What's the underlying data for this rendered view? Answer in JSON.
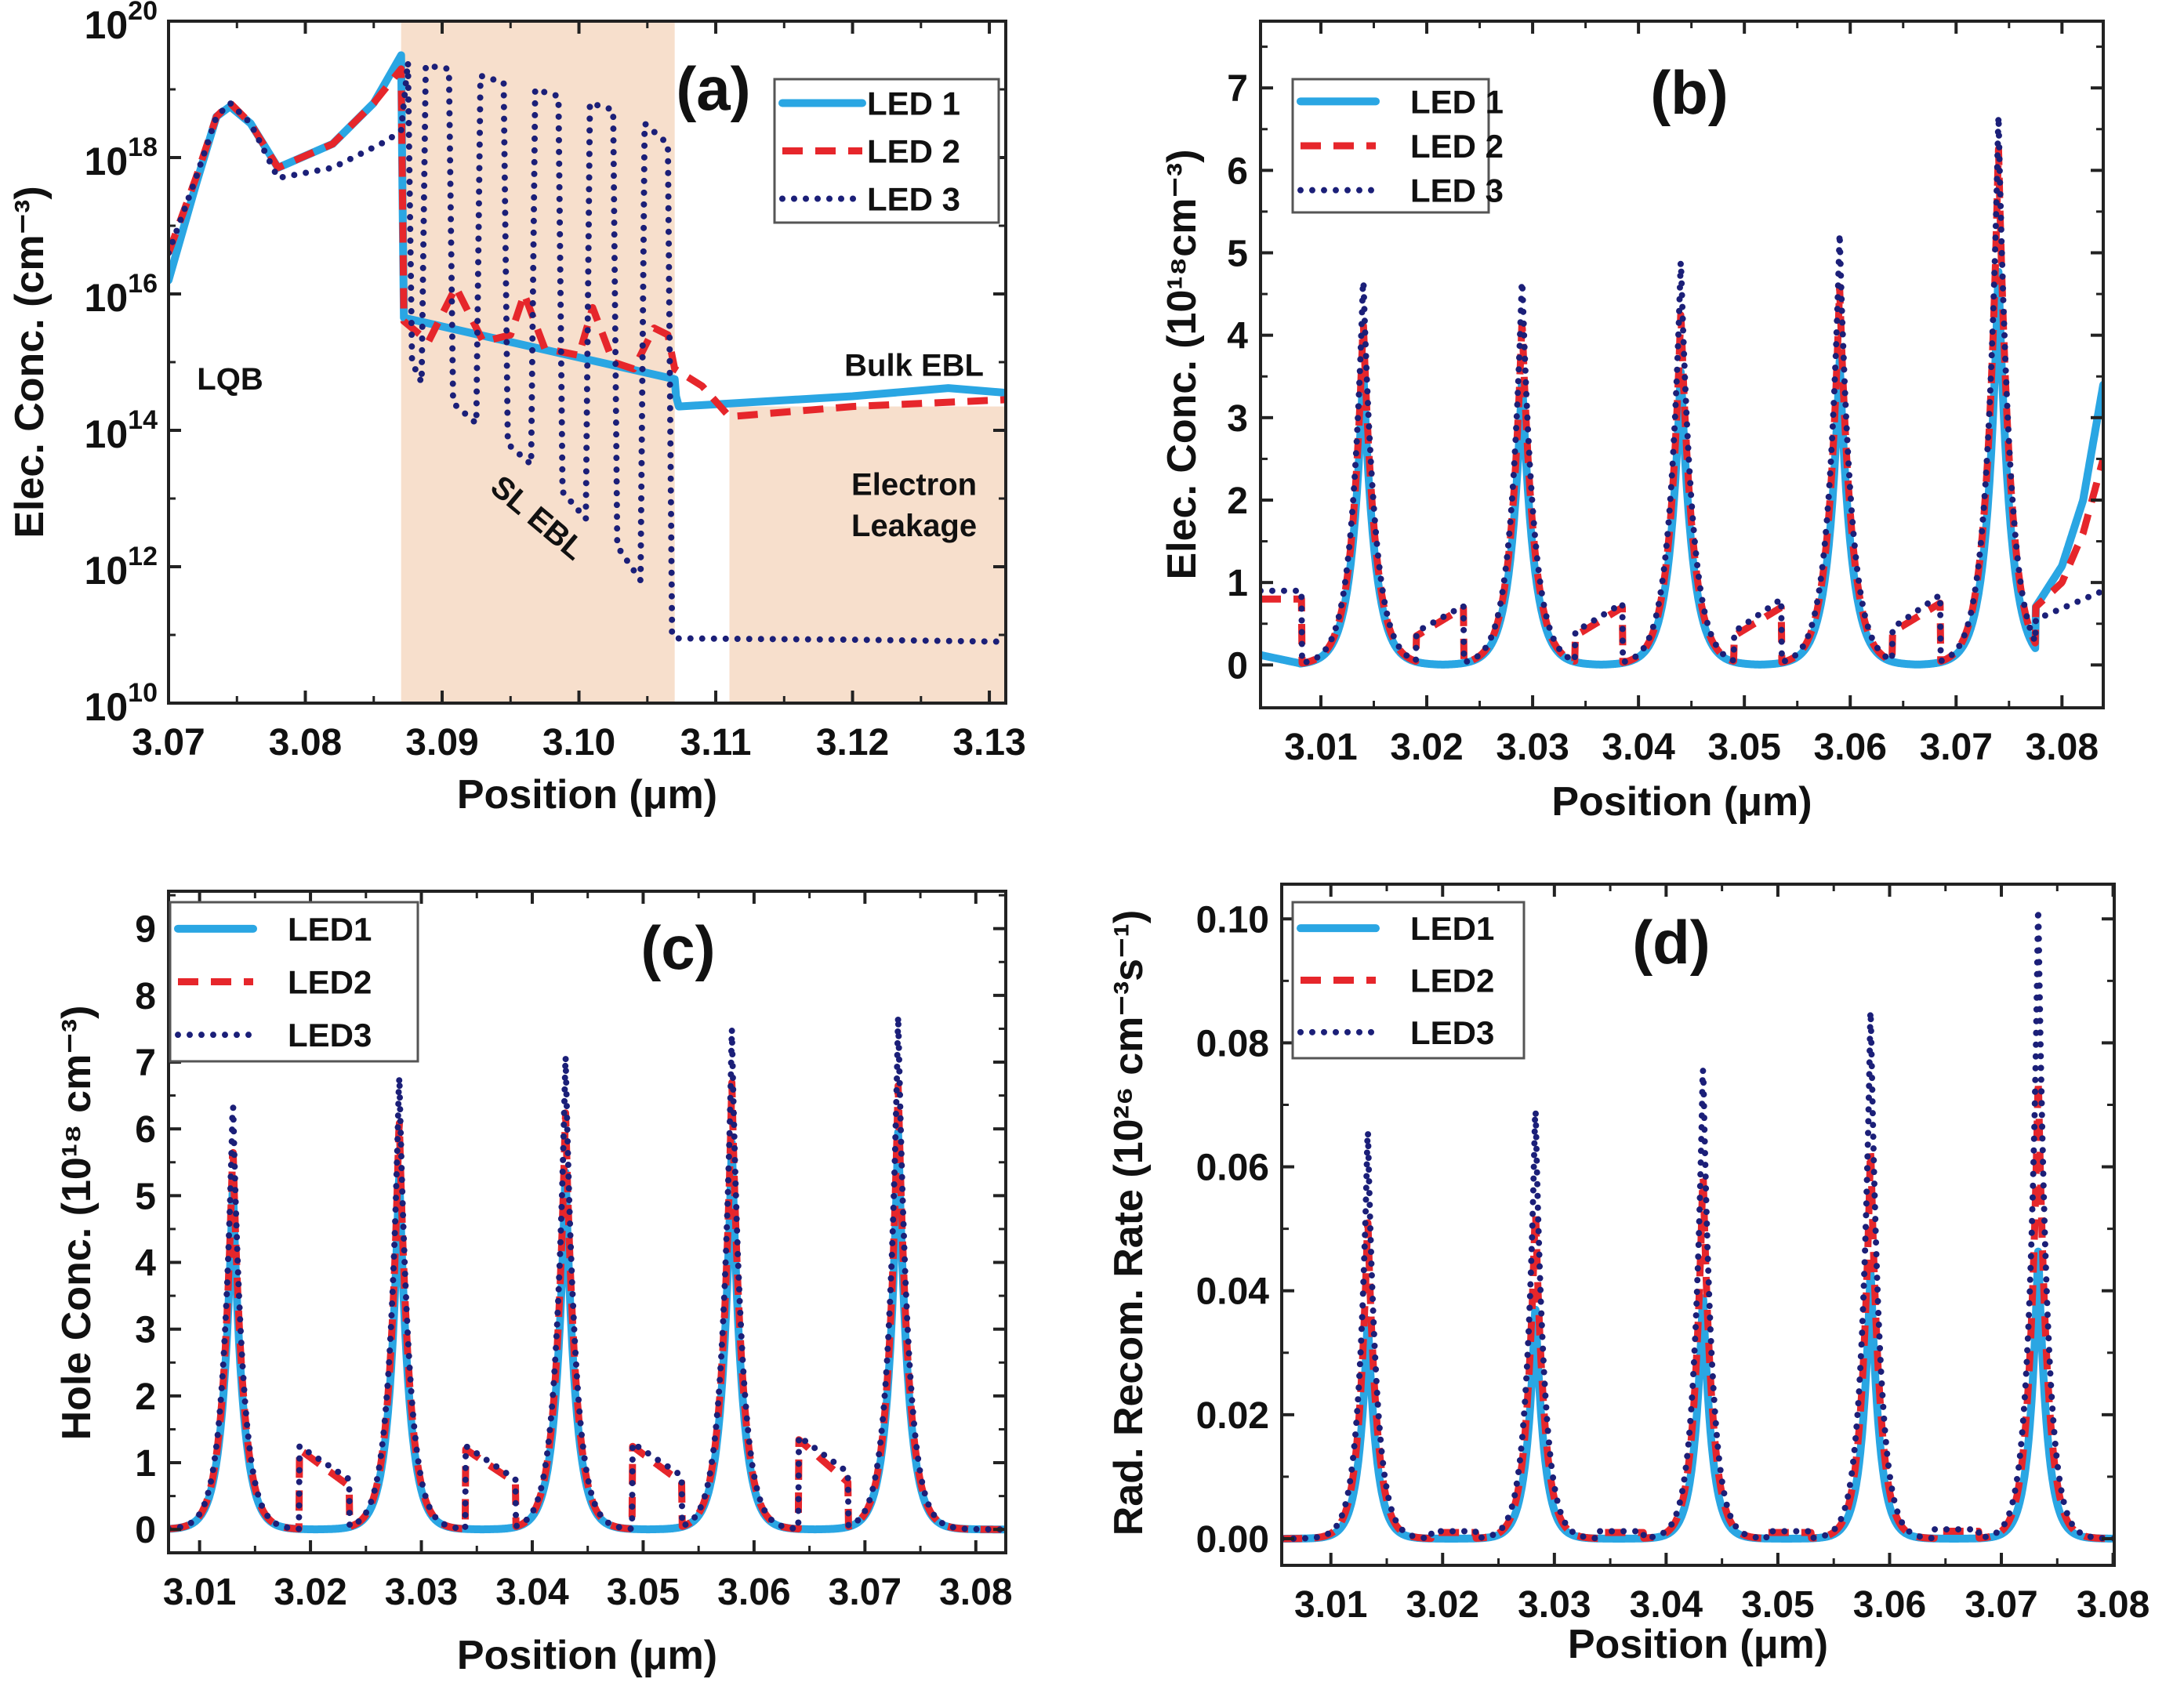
{
  "colors": {
    "LED1": "#2aa6e3",
    "LED2": "#e6262b",
    "LED3": "#1b1f78",
    "shade": "#f7dfcc"
  },
  "chart_data": [
    {
      "id": "a",
      "type": "line",
      "panel_label": "(a)",
      "xlabel": "Position (μm)",
      "ylabel": "Elec. Conc. (cm⁻³)",
      "yscale": "log10",
      "xlim": [
        3.07,
        3.1312
      ],
      "ylim_log10": [
        10,
        20
      ],
      "xticks": [
        3.07,
        3.08,
        3.09,
        3.1,
        3.11,
        3.12,
        3.13
      ],
      "xtick_labels": [
        "3.07",
        "3.08",
        "3.09",
        "3.10",
        "3.11",
        "3.12",
        "3.13"
      ],
      "yticks_exp": [
        10,
        12,
        14,
        16,
        18,
        20
      ],
      "legend_labels": [
        "LED 1",
        "LED 2",
        "LED 3"
      ],
      "shaded_regions": [
        {
          "x": [
            3.087,
            3.107
          ],
          "y_log10": [
            10,
            20
          ]
        },
        {
          "x": [
            3.111,
            3.1312
          ],
          "y_log10": [
            10,
            14.35
          ]
        }
      ],
      "annotations": [
        {
          "text": "LQB",
          "x": 3.0745,
          "y_log10": 14.6
        },
        {
          "text": "SL EBL",
          "x": 3.0965,
          "y_log10": 12.6,
          "rotate": 40
        },
        {
          "text": "Bulk EBL",
          "x": 3.1245,
          "y_log10": 14.8
        },
        {
          "text": "Electron",
          "x": 3.1245,
          "y_log10": 13.05
        },
        {
          "text": "Leakage",
          "x": 3.1245,
          "y_log10": 12.45
        }
      ],
      "series": [
        {
          "name": "LED 1",
          "x": [
            3.07,
            3.072,
            3.0735,
            3.0745,
            3.076,
            3.078,
            3.082,
            3.085,
            3.087,
            3.0871,
            3.0872,
            3.107,
            3.1071,
            3.1073,
            3.12,
            3.127,
            3.1312
          ],
          "y_log10": [
            16.2,
            17.6,
            18.6,
            18.75,
            18.5,
            17.85,
            18.2,
            18.8,
            19.5,
            17.5,
            15.65,
            14.75,
            14.5,
            14.35,
            14.5,
            14.62,
            14.55
          ]
        },
        {
          "name": "LED 2",
          "x": [
            3.07,
            3.072,
            3.0735,
            3.0745,
            3.076,
            3.078,
            3.082,
            3.085,
            3.087,
            3.0871,
            3.0872,
            3.089,
            3.0905,
            3.091,
            3.093,
            3.095,
            3.096,
            3.0975,
            3.1,
            3.101,
            3.1025,
            3.104,
            3.1055,
            3.1065,
            3.107,
            3.109,
            3.111,
            3.12,
            3.1312
          ],
          "y_log10": [
            16.6,
            17.7,
            18.6,
            18.8,
            18.5,
            17.85,
            18.2,
            18.8,
            19.3,
            17.5,
            15.6,
            15.3,
            15.9,
            16.1,
            15.3,
            15.4,
            16.0,
            15.2,
            15.1,
            15.8,
            15.0,
            14.9,
            15.5,
            15.4,
            14.9,
            14.65,
            14.2,
            14.35,
            14.45
          ]
        },
        {
          "name": "LED 3",
          "x": [
            3.07,
            3.072,
            3.0735,
            3.0745,
            3.076,
            3.078,
            3.082,
            3.086,
            3.087,
            3.0872,
            3.0875,
            3.0885,
            3.0905,
            3.0925,
            3.0945,
            3.0965,
            3.0985,
            3.1005,
            3.1025,
            3.1045,
            3.1065,
            3.107,
            3.12,
            3.1312
          ],
          "y_log10": [
            16.6,
            17.7,
            18.6,
            18.8,
            18.5,
            17.7,
            17.85,
            18.25,
            18.4,
            15.2,
            19.4,
            14.9,
            19.3,
            14.2,
            19.2,
            13.6,
            19.0,
            13.1,
            18.8,
            12.6,
            18.5,
            10.95,
            10.93,
            10.9
          ],
          "note_columns": {
            "x": [
              3.0875,
              3.0885,
              3.0905,
              3.0925,
              3.0945,
              3.0965,
              3.0985,
              3.1005,
              3.1025,
              3.1045,
              3.1065
            ],
            "top_log10": [
              19.4,
              19.35,
              19.3,
              19.2,
              19.1,
              19.0,
              18.9,
              18.8,
              18.7,
              18.5,
              18.2
            ],
            "bottom_log10": [
              15.0,
              14.7,
              14.4,
              14.1,
              13.8,
              13.5,
              13.1,
              12.7,
              12.3,
              11.8,
              11.2
            ]
          }
        }
      ]
    },
    {
      "id": "b",
      "type": "line",
      "panel_label": "(b)",
      "xlabel": "Position (μm)",
      "ylabel": "Elec. Conc. (10¹⁸cm⁻³)",
      "xlim": [
        3.0043,
        3.0839
      ],
      "ylim": [
        -0.52,
        7.81
      ],
      "xticks": [
        3.01,
        3.02,
        3.03,
        3.04,
        3.05,
        3.06,
        3.07,
        3.08
      ],
      "xtick_labels": [
        "3.01",
        "3.02",
        "3.03",
        "3.04",
        "3.05",
        "3.06",
        "3.07",
        "3.08"
      ],
      "yticks": [
        0,
        1,
        2,
        3,
        4,
        5,
        6,
        7
      ],
      "ytick_labels": [
        "0",
        "1",
        "2",
        "3",
        "4",
        "5",
        "6",
        "7"
      ],
      "legend_labels": [
        "LED 1",
        "LED 2",
        "LED 3"
      ],
      "peak_centers": [
        3.014,
        3.029,
        3.044,
        3.059,
        3.074
      ],
      "peak_width": 0.0011,
      "series": [
        {
          "name": "LED 1",
          "peaks": [
            3.6,
            3.5,
            3.6,
            3.7,
            4.8
          ],
          "segments": [
            [
              3.0043,
              3.008,
              0.12,
              0.02
            ],
            [
              3.0775,
              3.08,
              0.7,
              1.2
            ],
            [
              3.08,
              3.082,
              1.2,
              2.0
            ],
            [
              3.082,
              3.0839,
              2.0,
              3.4
            ]
          ]
        },
        {
          "name": "LED 2",
          "peaks": [
            4.2,
            4.2,
            4.3,
            4.6,
            6.3
          ],
          "segments": [
            [
              3.0043,
              3.0082,
              0.8,
              0.8
            ],
            [
              3.019,
              3.0235,
              0.35,
              0.7
            ],
            [
              3.034,
              3.0385,
              0.35,
              0.7
            ],
            [
              3.049,
              3.0535,
              0.35,
              0.7
            ],
            [
              3.064,
              3.0685,
              0.4,
              0.75
            ],
            [
              3.0775,
              3.08,
              0.7,
              1.0
            ],
            [
              3.08,
              3.082,
              1.0,
              1.6
            ],
            [
              3.082,
              3.0839,
              1.6,
              2.5
            ]
          ]
        },
        {
          "name": "LED 3",
          "peaks": [
            4.75,
            4.75,
            4.95,
            5.25,
            6.7
          ],
          "segments": [
            [
              3.0043,
              3.0082,
              0.9,
              0.9
            ],
            [
              3.019,
              3.0235,
              0.4,
              0.72
            ],
            [
              3.034,
              3.0385,
              0.4,
              0.75
            ],
            [
              3.049,
              3.0535,
              0.4,
              0.8
            ],
            [
              3.064,
              3.0685,
              0.45,
              0.85
            ],
            [
              3.0775,
              3.0839,
              0.55,
              0.9
            ]
          ]
        }
      ]
    },
    {
      "id": "c",
      "type": "line",
      "panel_label": "(c)",
      "xlabel": "Position (μm)",
      "ylabel": "Hole Conc. (10¹⁸ cm⁻³)",
      "xlim": [
        3.0072,
        3.0827
      ],
      "ylim": [
        -0.35,
        9.56
      ],
      "xticks": [
        3.01,
        3.02,
        3.03,
        3.04,
        3.05,
        3.06,
        3.07,
        3.08
      ],
      "xtick_labels": [
        "3.01",
        "3.02",
        "3.03",
        "3.04",
        "3.05",
        "3.06",
        "3.07",
        "3.08"
      ],
      "yticks": [
        0,
        1,
        2,
        3,
        4,
        5,
        6,
        7,
        8,
        9
      ],
      "ytick_labels": [
        "0",
        "1",
        "2",
        "3",
        "4",
        "5",
        "6",
        "7",
        "8",
        "9"
      ],
      "legend_labels": [
        "LED1",
        "LED2",
        "LED3"
      ],
      "peak_centers": [
        3.013,
        3.028,
        3.043,
        3.058,
        3.073
      ],
      "peak_width": 0.0009,
      "series": [
        {
          "name": "LED1",
          "peaks": [
            5.2,
            5.4,
            5.4,
            5.8,
            6.0
          ],
          "segments": []
        },
        {
          "name": "LED2",
          "peaks": [
            5.8,
            6.2,
            6.3,
            6.7,
            6.7
          ],
          "segments": [
            [
              3.019,
              3.0235,
              1.2,
              0.65
            ],
            [
              3.034,
              3.0385,
              1.2,
              0.7
            ],
            [
              3.049,
              3.0535,
              1.25,
              0.7
            ],
            [
              3.064,
              3.0685,
              1.35,
              0.7
            ]
          ]
        },
        {
          "name": "LED3",
          "peaks": [
            6.5,
            6.9,
            7.15,
            7.5,
            7.75
          ],
          "segments": [
            [
              3.019,
              3.0235,
              1.25,
              0.75
            ],
            [
              3.034,
              3.0385,
              1.25,
              0.75
            ],
            [
              3.049,
              3.0535,
              1.3,
              0.8
            ],
            [
              3.064,
              3.0685,
              1.4,
              0.85
            ]
          ]
        }
      ]
    },
    {
      "id": "d",
      "type": "line",
      "panel_label": "(d)",
      "xlabel": "Position (μm)",
      "ylabel": "Rad. Recom. Rate (10²⁶ cm⁻³s⁻¹)",
      "xlim": [
        3.0056,
        3.0801
      ],
      "ylim": [
        -0.0043,
        0.1056
      ],
      "xticks": [
        3.01,
        3.02,
        3.03,
        3.04,
        3.05,
        3.06,
        3.07,
        3.08
      ],
      "xtick_labels": [
        "3.01",
        "3.02",
        "3.03",
        "3.04",
        "3.05",
        "3.06",
        "3.07",
        "3.08"
      ],
      "yticks": [
        0,
        0.02,
        0.04,
        0.06,
        0.08,
        0.1
      ],
      "ytick_labels": [
        "0.00",
        "0.02",
        "0.04",
        "0.06",
        "0.08",
        "0.10"
      ],
      "legend_labels": [
        "LED1",
        "LED2",
        "LED3"
      ],
      "peak_centers": [
        3.0133,
        3.0283,
        3.0433,
        3.0583,
        3.0733
      ],
      "peak_width": 0.0008,
      "series": [
        {
          "name": "LED1",
          "peaks": [
            0.036,
            0.038,
            0.04,
            0.044,
            0.047
          ],
          "segments": []
        },
        {
          "name": "LED2",
          "peaks": [
            0.052,
            0.054,
            0.06,
            0.064,
            0.075
          ],
          "segments": [
            [
              3.019,
              3.023,
              0.001,
              0.001
            ],
            [
              3.034,
              3.038,
              0.001,
              0.001
            ],
            [
              3.049,
              3.053,
              0.001,
              0.001
            ],
            [
              3.064,
              3.068,
              0.0012,
              0.0012
            ]
          ]
        },
        {
          "name": "LED3",
          "peaks": [
            0.067,
            0.071,
            0.078,
            0.087,
            0.103
          ],
          "segments": [
            [
              3.019,
              3.023,
              0.0012,
              0.0012
            ],
            [
              3.034,
              3.038,
              0.0012,
              0.0012
            ],
            [
              3.049,
              3.053,
              0.0012,
              0.0012
            ],
            [
              3.064,
              3.068,
              0.0015,
              0.0015
            ]
          ]
        }
      ]
    }
  ]
}
